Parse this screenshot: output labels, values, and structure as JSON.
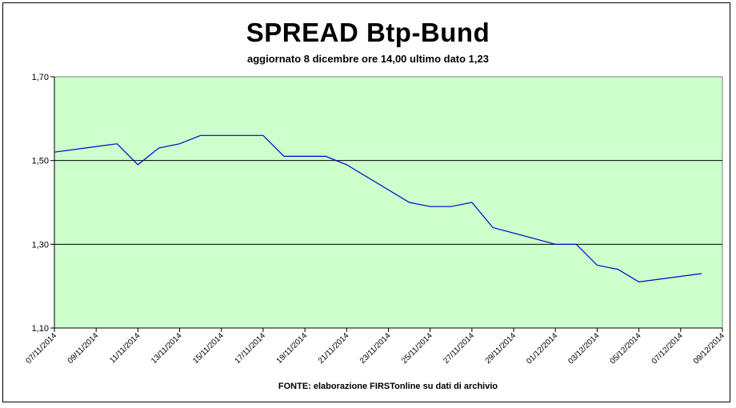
{
  "chart_data": {
    "type": "line",
    "title": "SPREAD Btp-Bund",
    "subtitle": "aggiornato 8 dicembre ore 14,00  ultimo dato  1,23",
    "source": "FONTE: elaborazione FIRSTonline su dati di archivio",
    "x_ticks": [
      "07/11/2014",
      "09/11/2014",
      "11/11/2014",
      "13/11/2014",
      "15/11/2014",
      "17/11/2014",
      "19/11/2014",
      "21/11/2014",
      "23/11/2014",
      "25/11/2014",
      "27/11/2014",
      "29/11/2014",
      "01/12/2014",
      "03/12/2014",
      "05/12/2014",
      "07/12/2014",
      "09/12/2014"
    ],
    "y_ticks": [
      "1,10",
      "1,30",
      "1,50",
      "1,70"
    ],
    "ylim": [
      1.1,
      1.7
    ],
    "xlim": [
      "2014-11-07",
      "2014-12-09"
    ],
    "grid": "horizontal",
    "colors": {
      "plot_background": "#ccffcc",
      "line": "#0000cc"
    },
    "series": [
      {
        "points": [
          [
            "2014-11-07",
            1.52
          ],
          [
            "2014-11-10",
            1.54
          ],
          [
            "2014-11-11",
            1.49
          ],
          [
            "2014-11-12",
            1.53
          ],
          [
            "2014-11-13",
            1.54
          ],
          [
            "2014-11-14",
            1.56
          ],
          [
            "2014-11-17",
            1.56
          ],
          [
            "2014-11-18",
            1.51
          ],
          [
            "2014-11-20",
            1.51
          ],
          [
            "2014-11-21",
            1.49
          ],
          [
            "2014-11-24",
            1.4
          ],
          [
            "2014-11-25",
            1.39
          ],
          [
            "2014-11-26",
            1.39
          ],
          [
            "2014-11-27",
            1.4
          ],
          [
            "2014-11-28",
            1.34
          ],
          [
            "2014-12-01",
            1.3
          ],
          [
            "2014-12-02",
            1.3
          ],
          [
            "2014-12-03",
            1.25
          ],
          [
            "2014-12-04",
            1.24
          ],
          [
            "2014-12-05",
            1.21
          ],
          [
            "2014-12-08",
            1.23
          ]
        ]
      }
    ]
  }
}
